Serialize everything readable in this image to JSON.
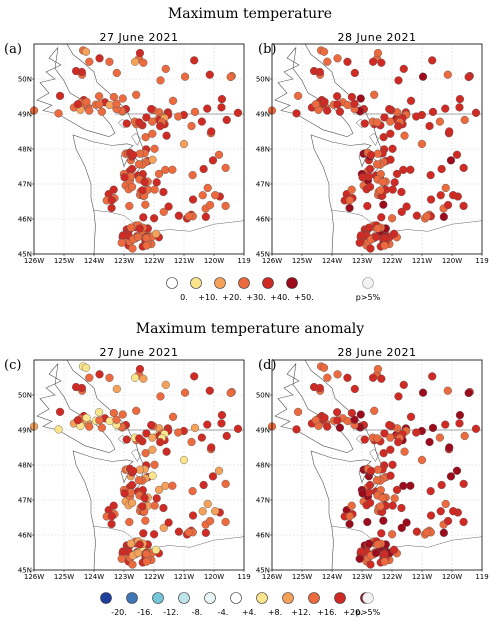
{
  "titles": {
    "top": "Maximum temperature",
    "bottom": "Maximum temperature anomaly"
  },
  "panels": [
    {
      "letter": "(a)",
      "date": "27 June 2021",
      "kind": "abs"
    },
    {
      "letter": "(b)",
      "date": "28 June 2021",
      "kind": "abs"
    },
    {
      "letter": "(c)",
      "date": "27 June 2021",
      "kind": "anom"
    },
    {
      "letter": "(d)",
      "date": "28 June 2021",
      "kind": "anom"
    }
  ],
  "axes": {
    "lon_ticks": [
      "126W",
      "125W",
      "124W",
      "123W",
      "122W",
      "121W",
      "120W",
      "119"
    ],
    "lat_ticks": [
      "45N",
      "46N",
      "47N",
      "48N",
      "49N",
      "50N"
    ]
  },
  "legend_abs": {
    "labels": [
      "0.",
      "+10.",
      "+20.",
      "+30.",
      "+40.",
      "+50."
    ],
    "colors": [
      "#ffffff",
      "#fbe58c",
      "#f5a15a",
      "#ec6a3d",
      "#cf2a23",
      "#9c0b1c"
    ],
    "nonsig_label": "p>5%",
    "nonsig_color": "#f2f2f2"
  },
  "legend_anom": {
    "labels": [
      "-20.",
      "-16.",
      "-12.",
      "-8.",
      "-4.",
      "+4.",
      "+8.",
      "+12.",
      "+16.",
      "+20."
    ],
    "colors": [
      "#1f3f9e",
      "#3e78b4",
      "#74c6db",
      "#bfe4ec",
      "#eaf6f7",
      "#ffffff",
      "#fbe58c",
      "#f5a15a",
      "#ec6a3d",
      "#cf2a23",
      "#9c0b1c"
    ],
    "nonsig_label": "p>5%",
    "nonsig_color": "#f2f2f2"
  }
}
